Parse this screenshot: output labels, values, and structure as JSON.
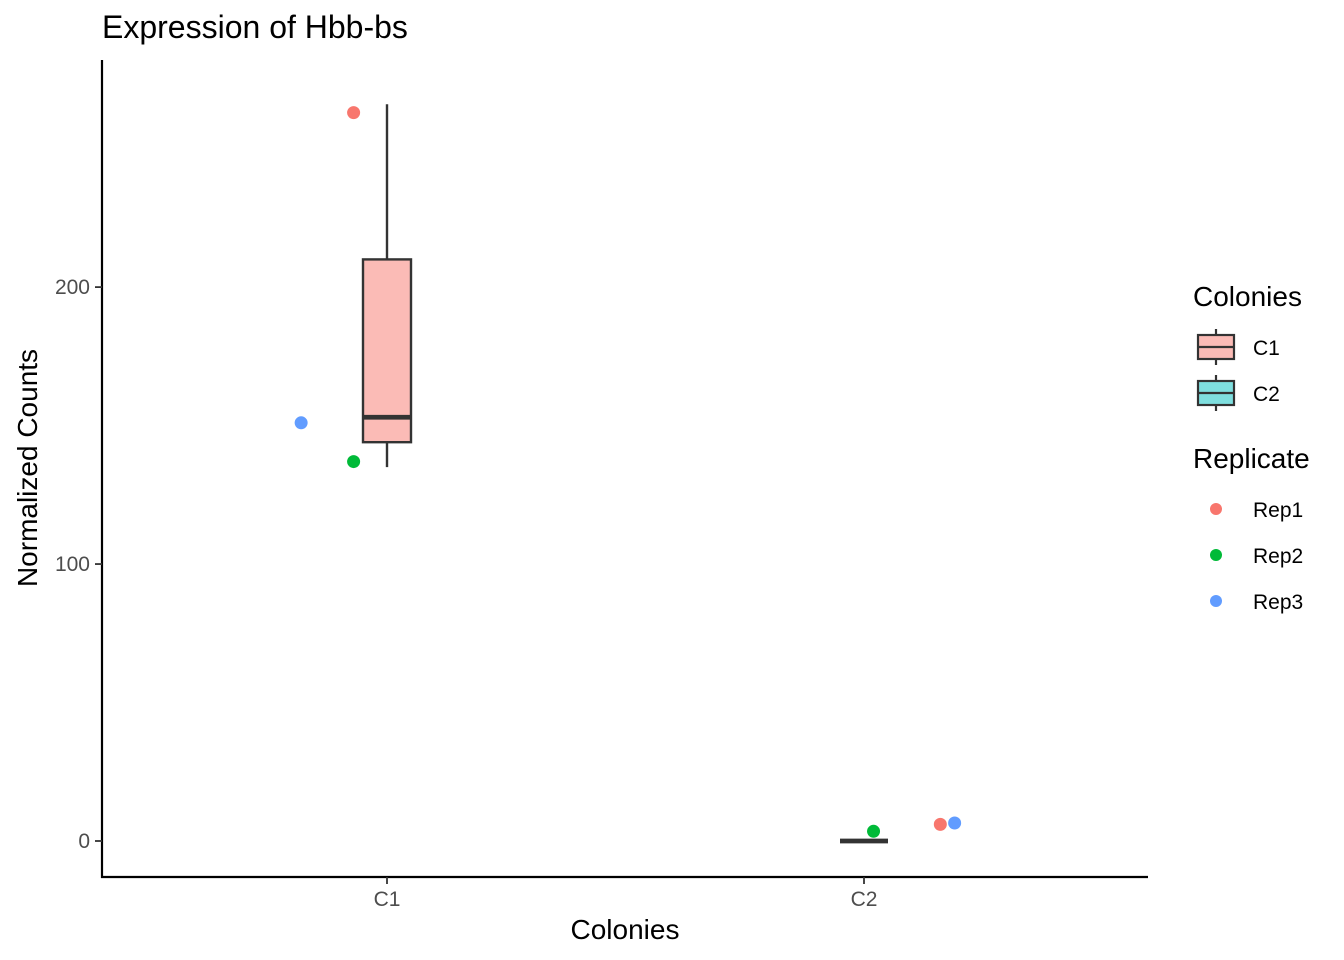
{
  "chart_data": {
    "type": "box",
    "title": "Expression of Hbb-bs",
    "xlabel": "Colonies",
    "ylabel": "Normalized Counts",
    "categories": [
      "C1",
      "C2"
    ],
    "y_ticks": [
      0,
      100,
      200
    ],
    "ylim": [
      -13,
      282
    ],
    "grid": false,
    "boxes": [
      {
        "category": "C1",
        "fill": "#FBBBB6",
        "min": 135,
        "q1": 144,
        "median": 153,
        "q3": 210,
        "max": 266
      },
      {
        "category": "C2",
        "fill": "#7FDFDF",
        "min": 0,
        "q1": 0,
        "median": 0,
        "q3": 0,
        "max": 0
      }
    ],
    "points": [
      {
        "category": "C1",
        "replicate": "Rep1",
        "y": 263,
        "jitter": -0.07
      },
      {
        "category": "C1",
        "replicate": "Rep2",
        "y": 137,
        "jitter": -0.07
      },
      {
        "category": "C1",
        "replicate": "Rep3",
        "y": 151,
        "jitter": -0.18
      },
      {
        "category": "C2",
        "replicate": "Rep1",
        "y": 6,
        "jitter": 0.16
      },
      {
        "category": "C2",
        "replicate": "Rep2",
        "y": 3.5,
        "jitter": 0.02
      },
      {
        "category": "C2",
        "replicate": "Rep3",
        "y": 6.5,
        "jitter": 0.19
      }
    ],
    "legends": [
      {
        "title": "Colonies",
        "kind": "box",
        "items": [
          {
            "label": "C1",
            "color": "#FBBBB6"
          },
          {
            "label": "C2",
            "color": "#7FDFDF"
          }
        ]
      },
      {
        "title": "Replicate",
        "kind": "point",
        "items": [
          {
            "label": "Rep1",
            "color": "#F8766D"
          },
          {
            "label": "Rep2",
            "color": "#00BA38"
          },
          {
            "label": "Rep3",
            "color": "#619CFF"
          }
        ]
      }
    ],
    "legend_position": "right"
  }
}
